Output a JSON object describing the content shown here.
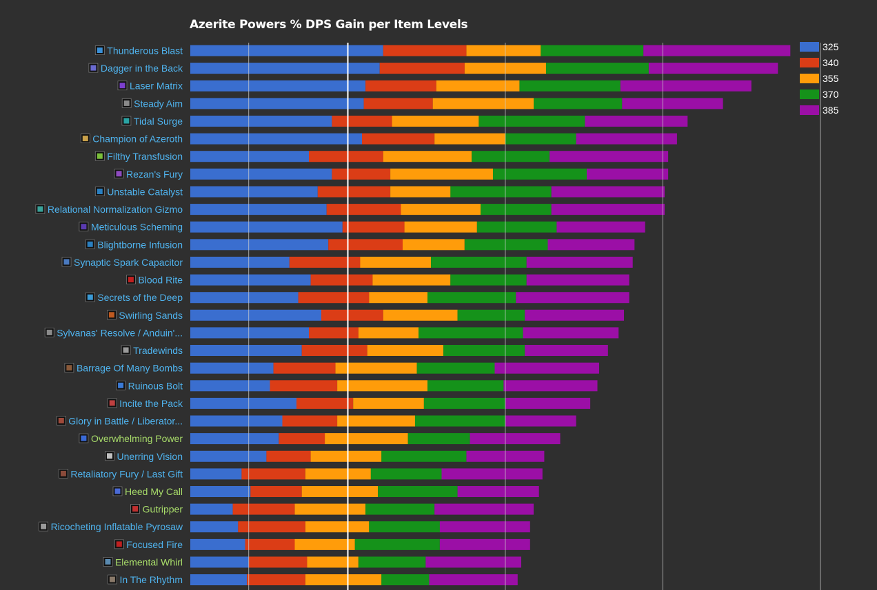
{
  "colors": {
    "background": "#2f2f2f",
    "grid": "#cfcfcf",
    "label_blue": "#4fb3ee",
    "label_green": "#a8dc6a",
    "series": [
      "#3a6ecf",
      "#db3d16",
      "#ff9c0a",
      "#15921a",
      "#9b0fa6"
    ]
  },
  "chart_data": {
    "type": "bar",
    "orientation": "horizontal",
    "stacked": true,
    "title": "Azerite Powers % DPS Gain per Item Levels",
    "legend_position": "top-right",
    "grid": true,
    "categories": [
      "Thunderous Blast",
      "Dagger in the Back",
      "Laser Matrix",
      "Steady Aim",
      "Tidal Surge",
      "Champion of Azeroth",
      "Filthy Transfusion",
      "Rezan's Fury",
      "Unstable Catalyst",
      "Relational Normalization Gizmo",
      "Meticulous Scheming",
      "Blightborne Infusion",
      "Synaptic Spark Capacitor",
      "Blood Rite",
      "Secrets of the Deep",
      "Swirling Sands",
      "Sylvanas' Resolve / Anduin'...",
      "Tradewinds",
      "Barrage Of Many Bombs",
      "Ruinous Bolt",
      "Incite the Pack",
      "Glory in Battle / Liberator...",
      "Overwhelming Power",
      "Unerring Vision",
      "Retaliatory Fury / Last Gift",
      "Heed My Call",
      "Gutripper",
      "Ricocheting Inflatable Pyrosaw",
      "Focused Fire",
      "Elemental Whirl",
      "In The Rhythm"
    ],
    "label_colors": [
      "blue",
      "blue",
      "blue",
      "blue",
      "blue",
      "blue",
      "blue",
      "blue",
      "blue",
      "blue",
      "blue",
      "blue",
      "blue",
      "blue",
      "blue",
      "blue",
      "blue",
      "blue",
      "blue",
      "blue",
      "blue",
      "blue",
      "green",
      "blue",
      "blue",
      "green",
      "green",
      "blue",
      "blue",
      "green",
      "blue"
    ],
    "icons": [
      "storm-icon",
      "dagger-icon",
      "laser-icon",
      "bow-icon",
      "wave-icon",
      "champion-icon",
      "vial-icon",
      "beast-icon",
      "orb-icon",
      "gizmo-icon",
      "dagger-icon",
      "blight-icon",
      "spark-icon",
      "blood-icon",
      "orb-icon",
      "fire-icon",
      "shield-icon",
      "wind-icon",
      "bomb-icon",
      "bolt-icon",
      "beast-icon",
      "sword-icon",
      "power-icon",
      "eye-icon",
      "fury-icon",
      "shield-icon",
      "blood-icon",
      "saw-icon",
      "target-icon",
      "whirl-icon",
      "rhythm-icon"
    ],
    "series": [
      {
        "name": "325",
        "values": [
          1.09,
          1.07,
          0.99,
          0.98,
          0.8,
          0.97,
          0.67,
          0.8,
          0.72,
          0.77,
          0.86,
          0.78,
          0.56,
          0.68,
          0.61,
          0.74,
          0.67,
          0.63,
          0.47,
          0.45,
          0.6,
          0.52,
          0.5,
          0.43,
          0.29,
          0.34,
          0.24,
          0.27,
          0.31,
          0.33,
          0.32
        ]
      },
      {
        "name": "340",
        "values": [
          0.47,
          0.48,
          0.4,
          0.39,
          0.34,
          0.41,
          0.42,
          0.33,
          0.41,
          0.42,
          0.35,
          0.42,
          0.4,
          0.35,
          0.4,
          0.35,
          0.28,
          0.37,
          0.35,
          0.38,
          0.32,
          0.31,
          0.26,
          0.25,
          0.36,
          0.29,
          0.35,
          0.38,
          0.28,
          0.33,
          0.33
        ]
      },
      {
        "name": "355",
        "values": [
          0.42,
          0.46,
          0.47,
          0.57,
          0.49,
          0.4,
          0.5,
          0.58,
          0.34,
          0.45,
          0.41,
          0.35,
          0.4,
          0.44,
          0.33,
          0.42,
          0.34,
          0.43,
          0.46,
          0.51,
          0.4,
          0.44,
          0.47,
          0.4,
          0.37,
          0.43,
          0.4,
          0.36,
          0.34,
          0.29,
          0.43
        ]
      },
      {
        "name": "370",
        "values": [
          0.58,
          0.58,
          0.57,
          0.5,
          0.6,
          0.4,
          0.44,
          0.53,
          0.57,
          0.4,
          0.45,
          0.47,
          0.54,
          0.43,
          0.5,
          0.38,
          0.59,
          0.46,
          0.44,
          0.43,
          0.46,
          0.51,
          0.35,
          0.48,
          0.4,
          0.45,
          0.39,
          0.4,
          0.48,
          0.38,
          0.27
        ]
      },
      {
        "name": "385",
        "values": [
          0.83,
          0.73,
          0.74,
          0.57,
          0.58,
          0.57,
          0.67,
          0.46,
          0.64,
          0.64,
          0.5,
          0.49,
          0.6,
          0.58,
          0.64,
          0.56,
          0.54,
          0.47,
          0.59,
          0.53,
          0.48,
          0.4,
          0.51,
          0.44,
          0.57,
          0.46,
          0.56,
          0.51,
          0.51,
          0.54,
          0.5
        ]
      }
    ]
  }
}
